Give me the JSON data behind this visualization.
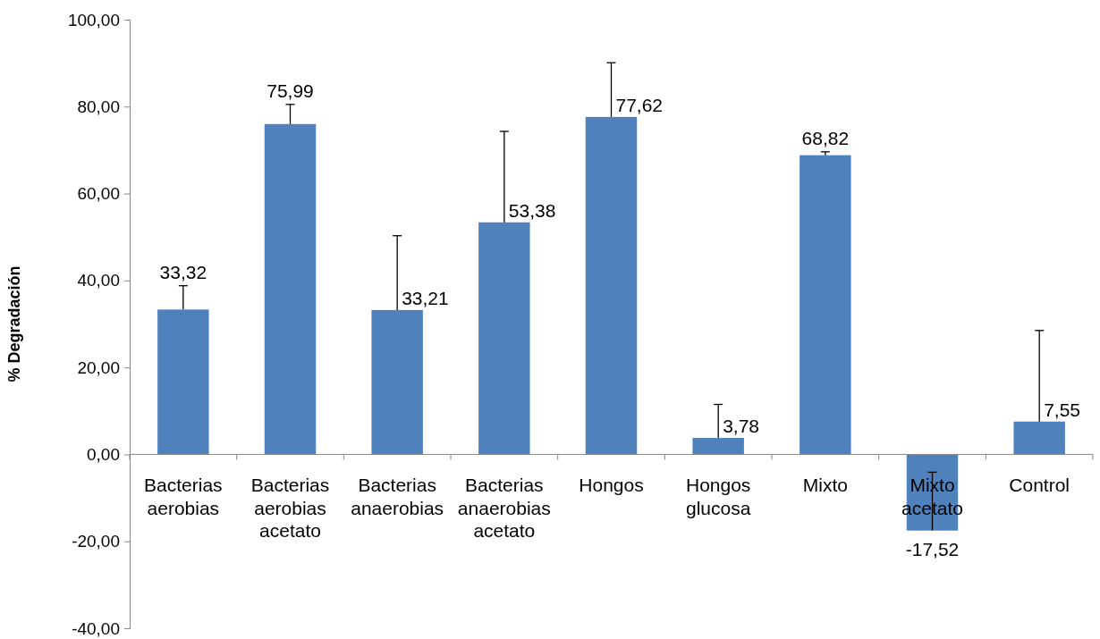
{
  "chart_data": {
    "type": "bar",
    "ylabel": "% Degradación",
    "categories": [
      "Bacterias aerobias",
      "Bacterias aerobias acetato",
      "Bacterias anaerobias",
      "Bacterias anaerobias acetato",
      "Hongos",
      "Hongos glucosa",
      "Mixto",
      "Mixto acetato",
      "Control"
    ],
    "values": [
      33.32,
      75.99,
      33.21,
      53.38,
      77.62,
      3.78,
      68.82,
      -17.52,
      7.55
    ],
    "value_labels": [
      "33,32",
      "75,99",
      "33,21",
      "53,38",
      "77,62",
      "3,78",
      "68,82",
      "-17,52",
      "7,55"
    ],
    "errors": [
      [
        33.32,
        38.8
      ],
      [
        75.99,
        80.5
      ],
      [
        33.21,
        50.3
      ],
      [
        53.38,
        74.3
      ],
      [
        77.62,
        90.1
      ],
      [
        3.78,
        11.5
      ],
      [
        68.82,
        69.6
      ],
      [
        -17.52,
        -4.1
      ],
      [
        7.55,
        28.5
      ]
    ],
    "color": "#4f81bd",
    "ylim": [
      -40,
      100
    ],
    "yticks": [
      {
        "value": -40,
        "label": "-40,00"
      },
      {
        "value": -20,
        "label": "-20,00"
      },
      {
        "value": 0,
        "label": "0,00"
      },
      {
        "value": 20,
        "label": "20,00"
      },
      {
        "value": 40,
        "label": "40,00"
      },
      {
        "value": 60,
        "label": "60,00"
      },
      {
        "value": 80,
        "label": "80,00"
      },
      {
        "value": 100,
        "label": "100,00"
      }
    ],
    "grid": false
  }
}
